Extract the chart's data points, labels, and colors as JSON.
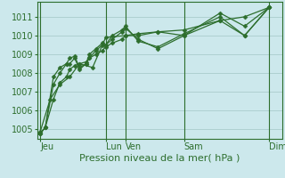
{
  "background_color": "#cce8ec",
  "grid_color": "#aacccc",
  "line_color": "#2d6e2d",
  "marker_color": "#2d6e2d",
  "ylim": [
    1004.5,
    1011.8
  ],
  "yticks": [
    1005,
    1006,
    1007,
    1008,
    1009,
    1010,
    1011
  ],
  "xlabel": "Pression niveau de la mer( hPa )",
  "xlabel_fontsize": 8,
  "tick_fontsize": 7,
  "day_labels": [
    "Jeu",
    "Lun",
    "Ven",
    "Sam",
    "Dim"
  ],
  "day_x": [
    0,
    40,
    52,
    88,
    140
  ],
  "xlim": [
    -2,
    148
  ],
  "vline_x": [
    0,
    40,
    52,
    88,
    140
  ],
  "series": [
    {
      "x": [
        0,
        3,
        8,
        12,
        16,
        18,
        21,
        24,
        28,
        30,
        34,
        38,
        40,
        44,
        50,
        52,
        60,
        72,
        88,
        110,
        125,
        140
      ],
      "y": [
        1004.8,
        1005.1,
        1006.6,
        1007.5,
        1007.8,
        1008.2,
        1008.4,
        1008.5,
        1008.6,
        1008.8,
        1009.0,
        1009.2,
        1009.4,
        1009.6,
        1009.8,
        1010.0,
        1010.1,
        1010.2,
        1010.3,
        1010.8,
        1011.0,
        1011.5
      ]
    },
    {
      "x": [
        0,
        3,
        8,
        12,
        16,
        18,
        21,
        24,
        28,
        30,
        34,
        38,
        40,
        44,
        50,
        52,
        60,
        72,
        88,
        110,
        125,
        140
      ],
      "y": [
        1004.8,
        1005.1,
        1007.4,
        1008.0,
        1008.5,
        1008.8,
        1008.9,
        1008.3,
        1008.5,
        1008.8,
        1009.2,
        1009.5,
        1009.5,
        1009.8,
        1010.2,
        1010.4,
        1009.8,
        1009.3,
        1010.0,
        1011.2,
        1010.5,
        1011.5
      ]
    },
    {
      "x": [
        0,
        3,
        8,
        12,
        16,
        18,
        21,
        24,
        28,
        30,
        34,
        38,
        40,
        44,
        50,
        52,
        60,
        72,
        88,
        110,
        125,
        140
      ],
      "y": [
        1004.8,
        1005.1,
        1007.8,
        1008.3,
        1008.5,
        1008.5,
        1008.8,
        1008.2,
        1008.5,
        1009.0,
        1009.3,
        1009.6,
        1009.5,
        1010.0,
        1010.3,
        1010.5,
        1009.7,
        1009.4,
        1010.1,
        1011.0,
        1010.0,
        1011.5
      ]
    },
    {
      "x": [
        0,
        6,
        12,
        18,
        24,
        32,
        40,
        52,
        60,
        72,
        88,
        110,
        125,
        140
      ],
      "y": [
        1004.9,
        1006.6,
        1007.4,
        1007.8,
        1008.5,
        1008.3,
        1009.9,
        1010.0,
        1010.0,
        1010.2,
        1010.0,
        1010.8,
        1010.0,
        1011.5
      ]
    }
  ]
}
